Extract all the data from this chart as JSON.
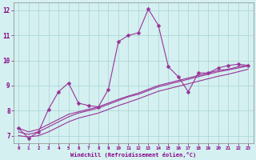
{
  "xlabel": "Windchill (Refroidissement éolien,°C)",
  "bg_color": "#d4f0f0",
  "line_color": "#993399",
  "grid_color": "#b0d8d8",
  "x_hours": [
    0,
    1,
    2,
    3,
    4,
    5,
    6,
    7,
    8,
    9,
    10,
    11,
    12,
    13,
    14,
    15,
    16,
    17,
    18,
    19,
    20,
    21,
    22,
    23
  ],
  "series1": [
    7.3,
    6.9,
    7.15,
    8.05,
    8.75,
    9.1,
    8.3,
    8.2,
    8.15,
    8.85,
    10.75,
    11.0,
    11.1,
    12.05,
    11.4,
    9.75,
    9.35,
    8.75,
    9.5,
    9.5,
    9.7,
    9.8,
    9.85,
    9.8
  ],
  "series2": [
    7.15,
    7.05,
    7.15,
    7.35,
    7.55,
    7.75,
    7.9,
    8.0,
    8.1,
    8.25,
    8.4,
    8.55,
    8.65,
    8.8,
    8.95,
    9.05,
    9.15,
    9.25,
    9.35,
    9.45,
    9.55,
    9.62,
    9.7,
    9.78
  ],
  "series3": [
    7.3,
    7.15,
    7.25,
    7.45,
    7.65,
    7.85,
    7.95,
    8.05,
    8.15,
    8.3,
    8.45,
    8.58,
    8.7,
    8.85,
    9.0,
    9.1,
    9.2,
    9.3,
    9.4,
    9.5,
    9.6,
    9.65,
    9.75,
    9.82
  ],
  "series4": [
    7.0,
    6.95,
    7.0,
    7.15,
    7.35,
    7.55,
    7.7,
    7.8,
    7.9,
    8.05,
    8.2,
    8.33,
    8.47,
    8.62,
    8.77,
    8.87,
    8.97,
    9.07,
    9.17,
    9.27,
    9.37,
    9.45,
    9.55,
    9.65
  ],
  "ylim": [
    6.7,
    12.3
  ],
  "xlim": [
    -0.5,
    23.5
  ],
  "xticks": [
    0,
    1,
    2,
    3,
    4,
    5,
    6,
    7,
    8,
    9,
    10,
    11,
    12,
    13,
    14,
    15,
    16,
    17,
    18,
    19,
    20,
    21,
    22,
    23
  ],
  "yticks": [
    7,
    8,
    9,
    10,
    11,
    12
  ],
  "markersize": 2.5,
  "linewidth": 0.8
}
